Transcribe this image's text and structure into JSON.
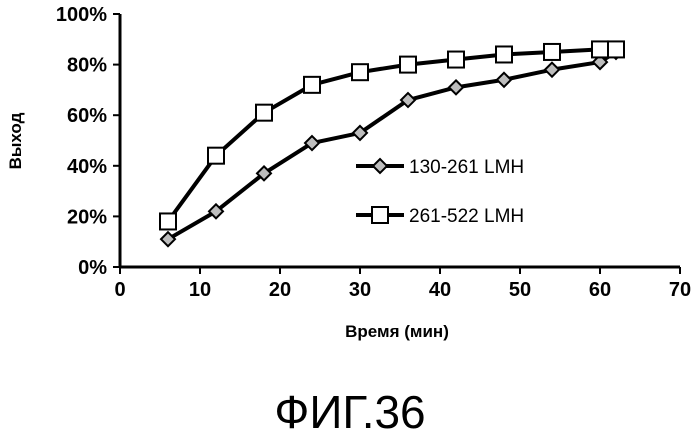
{
  "figure_caption": "ФИГ.36",
  "chart_data": {
    "type": "line",
    "xlabel": "Время (мин)",
    "ylabel": "Выход",
    "xlim": [
      0,
      70
    ],
    "ylim": [
      0,
      100
    ],
    "x_ticks": [
      "0",
      "10",
      "20",
      "30",
      "40",
      "50",
      "60",
      "70"
    ],
    "y_ticks": [
      "0%",
      "20%",
      "40%",
      "60%",
      "80%",
      "100%"
    ],
    "grid": false,
    "legend_position": "center-right",
    "series": [
      {
        "name": "130-261 LMH",
        "marker": "diamond",
        "color": "#000000",
        "x": [
          6,
          12,
          18,
          24,
          30,
          36,
          42,
          48,
          54,
          60,
          62
        ],
        "y": [
          11,
          22,
          37,
          49,
          53,
          66,
          71,
          74,
          78,
          81,
          85
        ]
      },
      {
        "name": "261-522 LMH",
        "marker": "square",
        "color": "#000000",
        "x": [
          6,
          12,
          18,
          24,
          30,
          36,
          42,
          48,
          54,
          60,
          62
        ],
        "y": [
          18,
          44,
          61,
          72,
          77,
          80,
          82,
          84,
          85,
          86,
          86
        ]
      }
    ]
  }
}
